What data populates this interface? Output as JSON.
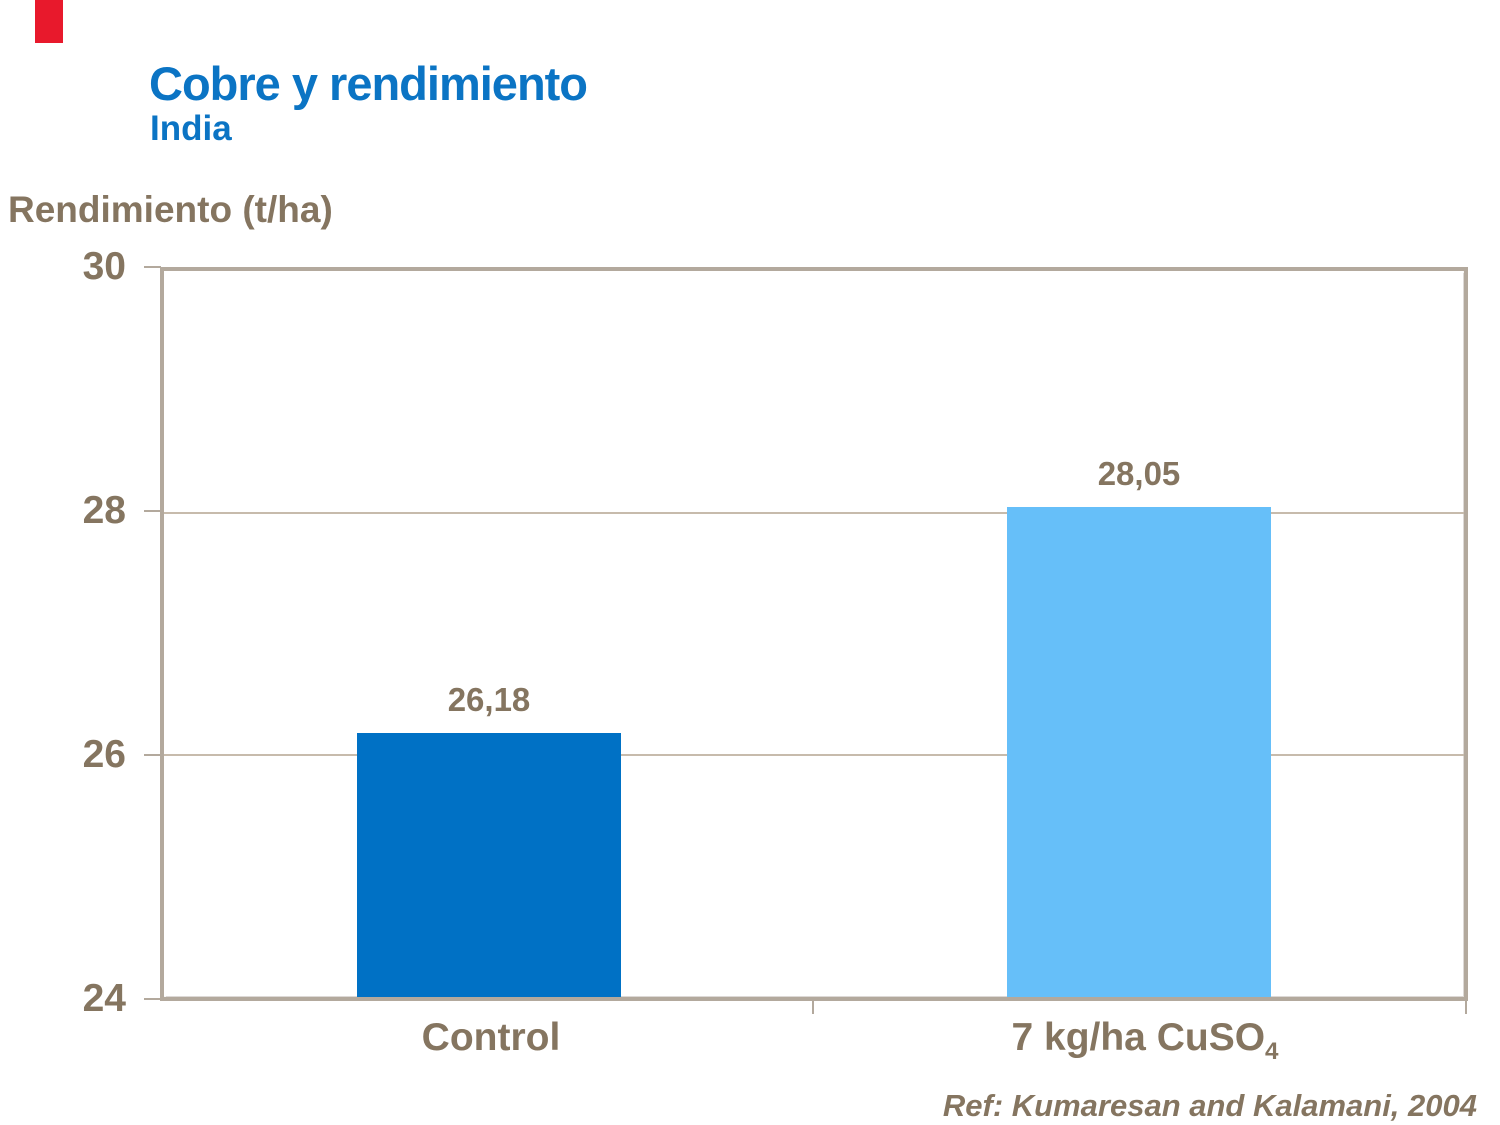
{
  "header": {
    "title": "Cobre y rendimiento",
    "subtitle": "India"
  },
  "chart_data": {
    "type": "bar",
    "title": "Cobre y rendimiento",
    "subtitle": "India",
    "xlabel": "",
    "ylabel": "Rendimiento (t/ha)",
    "ylim": [
      24,
      30
    ],
    "yticks": [
      30,
      28,
      26,
      24
    ],
    "ytick_labels": [
      "30",
      "28",
      "26",
      "24"
    ],
    "gridline_values": [
      28,
      26
    ],
    "grid": "horizontal",
    "legend": "none",
    "categories": [
      {
        "text": "Control",
        "sub": ""
      },
      {
        "text": "7 kg/ha CuSO",
        "sub": "4"
      }
    ],
    "values": [
      26.18,
      28.05
    ],
    "value_labels": [
      "26,18",
      "28,05"
    ],
    "bar_colors": [
      "#0071C5",
      "#66BFF9"
    ]
  },
  "footer": {
    "reference": "Ref: Kumaresan and Kalamani,  2004"
  },
  "colors": {
    "title_blue": "#0B74C4",
    "text_brown": "#857560",
    "axis_tan": "#B3A99D",
    "gridline": "#C7BBAC",
    "bar_control": "#0071C5",
    "bar_cuso4": "#66BFF9",
    "accent_red": "#E8192C"
  }
}
